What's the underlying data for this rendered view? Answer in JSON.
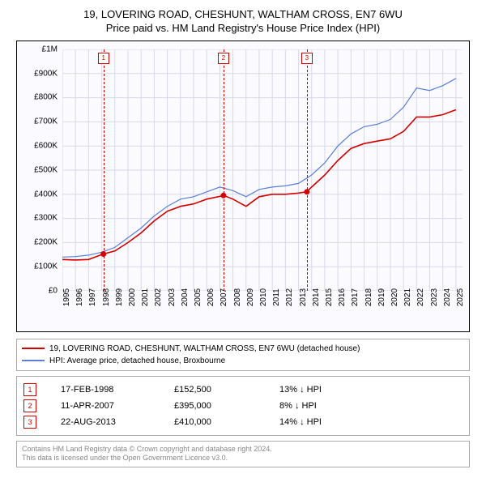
{
  "title_line1": "19, LOVERING ROAD, CHESHUNT, WALTHAM CROSS, EN7 6WU",
  "title_line2": "Price paid vs. HM Land Registry's House Price Index (HPI)",
  "chart": {
    "type": "line",
    "background_color": "#fafaff",
    "x_range": [
      1995,
      2025.5
    ],
    "y_range": [
      0,
      1000000
    ],
    "y_ticks": [
      {
        "v": 0,
        "label": "£0"
      },
      {
        "v": 100000,
        "label": "£100K"
      },
      {
        "v": 200000,
        "label": "£200K"
      },
      {
        "v": 300000,
        "label": "£300K"
      },
      {
        "v": 400000,
        "label": "£400K"
      },
      {
        "v": 500000,
        "label": "£500K"
      },
      {
        "v": 600000,
        "label": "£600K"
      },
      {
        "v": 700000,
        "label": "£700K"
      },
      {
        "v": 800000,
        "label": "£800K"
      },
      {
        "v": 900000,
        "label": "£900K"
      },
      {
        "v": 1000000,
        "label": "£1M"
      }
    ],
    "x_ticks": [
      1995,
      1996,
      1997,
      1998,
      1999,
      2000,
      2001,
      2002,
      2003,
      2004,
      2005,
      2006,
      2007,
      2008,
      2009,
      2010,
      2011,
      2012,
      2013,
      2014,
      2015,
      2016,
      2017,
      2018,
      2019,
      2020,
      2021,
      2022,
      2023,
      2024,
      2025
    ],
    "grid_color": "#d8d8e8",
    "tick_font_size": 10,
    "series": [
      {
        "name": "property",
        "label": "19, LOVERING ROAD, CHESHUNT, WALTHAM CROSS, EN7 6WU (detached house)",
        "color": "#d40000",
        "width": 1.6,
        "points": [
          [
            1995.0,
            130000
          ],
          [
            1996.0,
            128000
          ],
          [
            1997.0,
            130000
          ],
          [
            1998.1,
            152500
          ],
          [
            1999.0,
            165000
          ],
          [
            2000.0,
            200000
          ],
          [
            2001.0,
            240000
          ],
          [
            2002.0,
            290000
          ],
          [
            2003.0,
            330000
          ],
          [
            2004.0,
            350000
          ],
          [
            2005.0,
            360000
          ],
          [
            2006.0,
            380000
          ],
          [
            2007.3,
            395000
          ],
          [
            2008.0,
            380000
          ],
          [
            2009.0,
            350000
          ],
          [
            2010.0,
            390000
          ],
          [
            2011.0,
            400000
          ],
          [
            2012.0,
            400000
          ],
          [
            2013.0,
            405000
          ],
          [
            2013.6,
            410000
          ],
          [
            2014.0,
            430000
          ],
          [
            2015.0,
            480000
          ],
          [
            2016.0,
            540000
          ],
          [
            2017.0,
            590000
          ],
          [
            2018.0,
            610000
          ],
          [
            2019.0,
            620000
          ],
          [
            2020.0,
            630000
          ],
          [
            2021.0,
            660000
          ],
          [
            2022.0,
            720000
          ],
          [
            2023.0,
            720000
          ],
          [
            2024.0,
            730000
          ],
          [
            2025.0,
            750000
          ]
        ]
      },
      {
        "name": "hpi",
        "label": "HPI: Average price, detached house, Broxbourne",
        "color": "#5b7fd6",
        "width": 1.2,
        "points": [
          [
            1995.0,
            140000
          ],
          [
            1996.0,
            142000
          ],
          [
            1997.0,
            148000
          ],
          [
            1998.0,
            160000
          ],
          [
            1999.0,
            180000
          ],
          [
            2000.0,
            220000
          ],
          [
            2001.0,
            260000
          ],
          [
            2002.0,
            310000
          ],
          [
            2003.0,
            350000
          ],
          [
            2004.0,
            380000
          ],
          [
            2005.0,
            390000
          ],
          [
            2006.0,
            410000
          ],
          [
            2007.0,
            430000
          ],
          [
            2008.0,
            415000
          ],
          [
            2009.0,
            390000
          ],
          [
            2010.0,
            420000
          ],
          [
            2011.0,
            430000
          ],
          [
            2012.0,
            435000
          ],
          [
            2013.0,
            445000
          ],
          [
            2014.0,
            480000
          ],
          [
            2015.0,
            530000
          ],
          [
            2016.0,
            600000
          ],
          [
            2017.0,
            650000
          ],
          [
            2018.0,
            680000
          ],
          [
            2019.0,
            690000
          ],
          [
            2020.0,
            710000
          ],
          [
            2021.0,
            760000
          ],
          [
            2022.0,
            840000
          ],
          [
            2023.0,
            830000
          ],
          [
            2024.0,
            850000
          ],
          [
            2025.0,
            880000
          ]
        ]
      }
    ],
    "sale_markers": [
      {
        "n": "1",
        "x": 1998.13,
        "y": 152500,
        "color": "#d40000"
      },
      {
        "n": "2",
        "x": 2007.28,
        "y": 395000,
        "color": "#d40000"
      },
      {
        "n": "3",
        "x": 2013.64,
        "y": 410000,
        "color": "#d40000"
      }
    ]
  },
  "legend": {
    "border_color": "#aaaaaa",
    "items": [
      {
        "color": "#d40000",
        "label": "19, LOVERING ROAD, CHESHUNT, WALTHAM CROSS, EN7 6WU (detached house)"
      },
      {
        "color": "#5b7fd6",
        "label": "HPI: Average price, detached house, Broxbourne"
      }
    ]
  },
  "sales": [
    {
      "n": "1",
      "date": "17-FEB-1998",
      "price": "£152,500",
      "hpi": "13% ↓ HPI",
      "color": "#d40000"
    },
    {
      "n": "2",
      "date": "11-APR-2007",
      "price": "£395,000",
      "hpi": "8% ↓ HPI",
      "color": "#d40000"
    },
    {
      "n": "3",
      "date": "22-AUG-2013",
      "price": "£410,000",
      "hpi": "14% ↓ HPI",
      "color": "#d40000"
    }
  ],
  "footer_line1": "Contains HM Land Registry data © Crown copyright and database right 2024.",
  "footer_line2": "This data is licensed under the Open Government Licence v3.0."
}
